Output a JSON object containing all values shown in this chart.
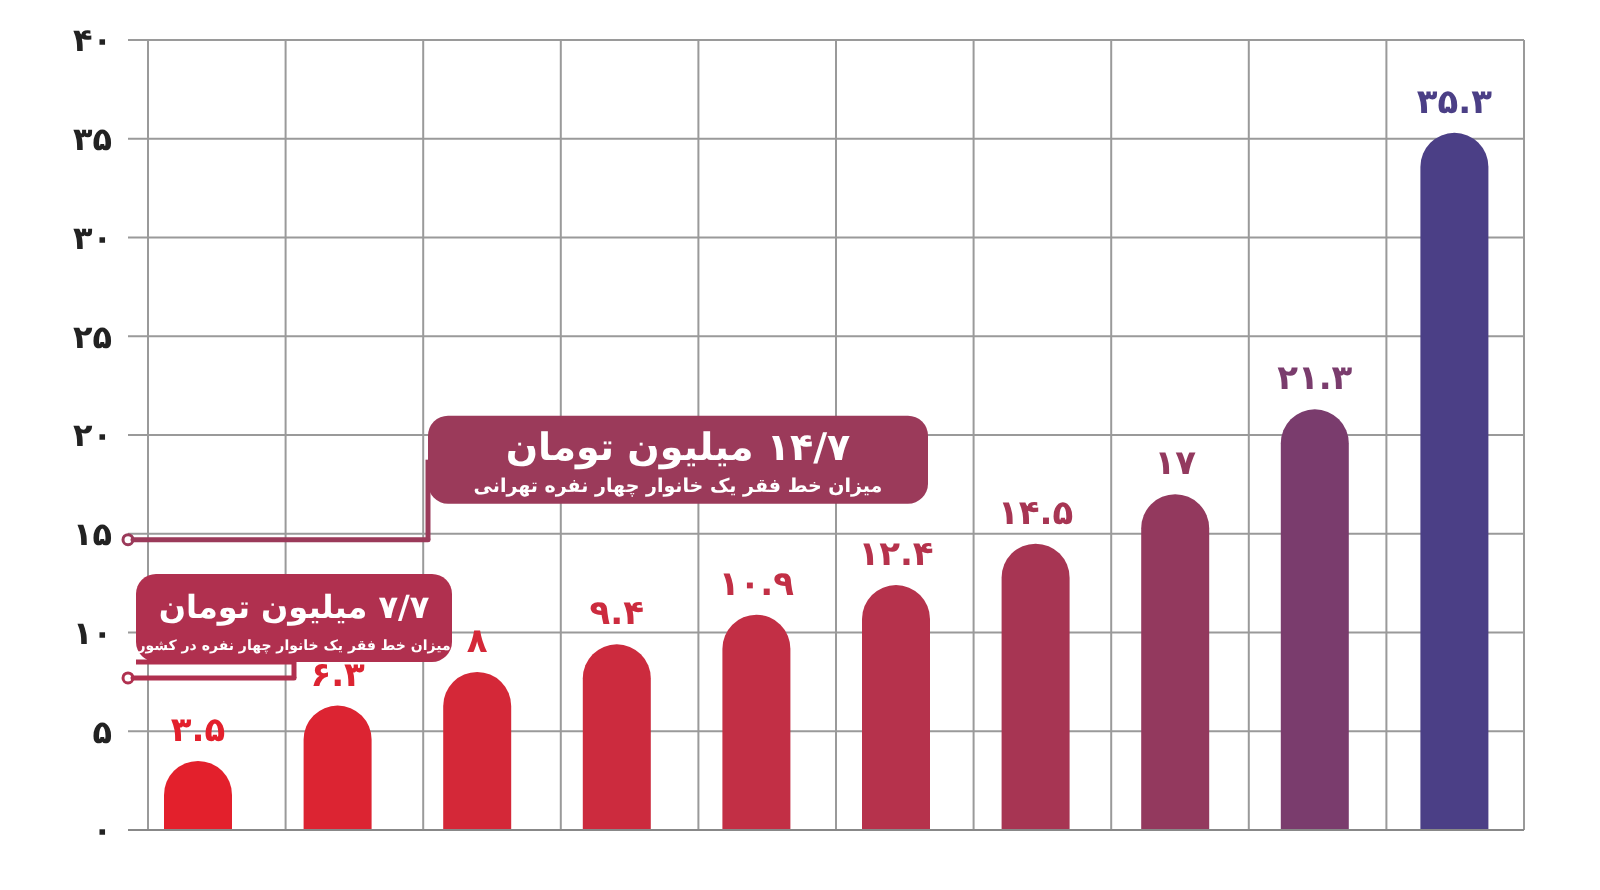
{
  "chart_data": {
    "type": "bar",
    "categories": [
      null,
      null,
      null,
      null,
      null,
      null,
      null,
      null,
      null,
      null
    ],
    "values": [
      3.5,
      6.3,
      8,
      9.4,
      10.9,
      12.4,
      14.5,
      17,
      21.3,
      35.3
    ],
    "colors": [
      "#e3202c",
      "#dc2432",
      "#d42838",
      "#cc2b3e",
      "#c22f45",
      "#b6324c",
      "#a73553",
      "#93395e",
      "#7a3c6d",
      "#4b3f86"
    ],
    "value_labels": [
      "۳.۵",
      "۶.۳",
      "۸",
      "۹.۴",
      "۱۰.۹",
      "۱۲.۴",
      "۱۴.۵",
      "۱۷",
      "۲۱.۳",
      "۳۵.۳"
    ],
    "ylim": [
      0,
      40
    ],
    "yticks": [
      {
        "value": 0,
        "label": "۰"
      },
      {
        "value": 5,
        "label": "۵"
      },
      {
        "value": 10,
        "label": "۱۰"
      },
      {
        "value": 15,
        "label": "۱۵"
      },
      {
        "value": 20,
        "label": "۲۰"
      },
      {
        "value": 25,
        "label": "۲۵"
      },
      {
        "value": 30,
        "label": "۳۰"
      },
      {
        "value": 35,
        "label": "۳۵"
      },
      {
        "value": 40,
        "label": "۴۰"
      }
    ],
    "grid": true,
    "ref_lines": [
      {
        "axis": "y",
        "value": 14.7,
        "label": "۱۴/۷ میلیون تومان",
        "color": "#9b3a5a"
      },
      {
        "axis": "y",
        "value": 7.7,
        "label": "۷/۷ میلیون تومان",
        "color": "#b0304f"
      }
    ],
    "annotations": [
      "میزان خط فقر یک خانوار چهار نفره تهرانی",
      "میزان خط فقر یک خانوار چهار نفره در کشور"
    ]
  }
}
